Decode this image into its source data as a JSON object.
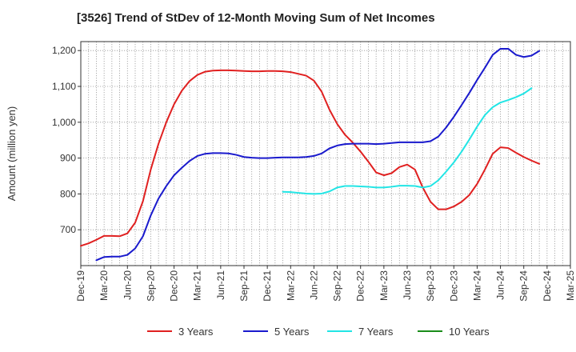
{
  "chart_data": {
    "type": "line",
    "title": "[3526]  Trend of StDev of 12-Month Moving Sum of Net Incomes",
    "ylabel": "Amount (million yen)",
    "xlabel": "",
    "x_ticks": [
      "Dec-19",
      "Mar-20",
      "Jun-20",
      "Sep-20",
      "Dec-20",
      "Mar-21",
      "Jun-21",
      "Sep-21",
      "Dec-21",
      "Mar-22",
      "Jun-22",
      "Sep-22",
      "Dec-22",
      "Mar-23",
      "Jun-23",
      "Sep-23",
      "Dec-23",
      "Mar-24",
      "Jun-24",
      "Sep-24",
      "Dec-24",
      "Mar-25"
    ],
    "y_ticks": [
      700,
      800,
      900,
      "1,000",
      "1,100",
      "1,200"
    ],
    "ylim": [
      600,
      1225
    ],
    "grid": true,
    "legend_position": "bottom",
    "x_unit": "months since Dec-19",
    "series": [
      {
        "name": "3 Years",
        "color": "#e02020",
        "points": [
          [
            0,
            655
          ],
          [
            1,
            662
          ],
          [
            2,
            672
          ],
          [
            3,
            683
          ],
          [
            4,
            683
          ],
          [
            5,
            682
          ],
          [
            6,
            690
          ],
          [
            7,
            720
          ],
          [
            8,
            780
          ],
          [
            9,
            868
          ],
          [
            10,
            940
          ],
          [
            11,
            1000
          ],
          [
            12,
            1050
          ],
          [
            13,
            1088
          ],
          [
            14,
            1115
          ],
          [
            15,
            1132
          ],
          [
            16,
            1141
          ],
          [
            17,
            1144
          ],
          [
            18,
            1145
          ],
          [
            19,
            1145
          ],
          [
            20,
            1144
          ],
          [
            21,
            1143
          ],
          [
            22,
            1142
          ],
          [
            23,
            1142
          ],
          [
            24,
            1143
          ],
          [
            25,
            1143
          ],
          [
            26,
            1142
          ],
          [
            27,
            1140
          ],
          [
            28,
            1135
          ],
          [
            29,
            1130
          ],
          [
            30,
            1116
          ],
          [
            31,
            1085
          ],
          [
            32,
            1035
          ],
          [
            33,
            995
          ],
          [
            34,
            965
          ],
          [
            35,
            943
          ],
          [
            36,
            918
          ],
          [
            37,
            890
          ],
          [
            38,
            860
          ],
          [
            39,
            852
          ],
          [
            40,
            858
          ],
          [
            41,
            875
          ],
          [
            42,
            882
          ],
          [
            43,
            868
          ],
          [
            44,
            818
          ],
          [
            45,
            778
          ],
          [
            46,
            757
          ],
          [
            47,
            757
          ],
          [
            48,
            765
          ],
          [
            49,
            778
          ],
          [
            50,
            797
          ],
          [
            51,
            828
          ],
          [
            52,
            868
          ],
          [
            53,
            912
          ],
          [
            54,
            930
          ],
          [
            55,
            928
          ],
          [
            56,
            915
          ],
          [
            57,
            903
          ],
          [
            58,
            893
          ],
          [
            59,
            884
          ]
        ]
      },
      {
        "name": "5 Years",
        "color": "#1a1acd",
        "points": [
          [
            2,
            615
          ],
          [
            3,
            624
          ],
          [
            4,
            625
          ],
          [
            5,
            625
          ],
          [
            6,
            630
          ],
          [
            7,
            648
          ],
          [
            8,
            682
          ],
          [
            9,
            740
          ],
          [
            10,
            787
          ],
          [
            11,
            822
          ],
          [
            12,
            852
          ],
          [
            13,
            873
          ],
          [
            14,
            892
          ],
          [
            15,
            906
          ],
          [
            16,
            912
          ],
          [
            17,
            914
          ],
          [
            18,
            914
          ],
          [
            19,
            913
          ],
          [
            20,
            909
          ],
          [
            21,
            903
          ],
          [
            22,
            901
          ],
          [
            23,
            900
          ],
          [
            24,
            900
          ],
          [
            25,
            901
          ],
          [
            26,
            902
          ],
          [
            27,
            902
          ],
          [
            28,
            902
          ],
          [
            29,
            903
          ],
          [
            30,
            906
          ],
          [
            31,
            913
          ],
          [
            32,
            927
          ],
          [
            33,
            935
          ],
          [
            34,
            939
          ],
          [
            35,
            940
          ],
          [
            36,
            940
          ],
          [
            37,
            940
          ],
          [
            38,
            939
          ],
          [
            39,
            940
          ],
          [
            40,
            942
          ],
          [
            41,
            944
          ],
          [
            42,
            944
          ],
          [
            43,
            944
          ],
          [
            44,
            944
          ],
          [
            45,
            947
          ],
          [
            46,
            960
          ],
          [
            47,
            985
          ],
          [
            48,
            1015
          ],
          [
            49,
            1048
          ],
          [
            50,
            1082
          ],
          [
            51,
            1118
          ],
          [
            52,
            1152
          ],
          [
            53,
            1188
          ],
          [
            54,
            1205
          ],
          [
            55,
            1205
          ],
          [
            56,
            1188
          ],
          [
            57,
            1182
          ],
          [
            58,
            1186
          ],
          [
            59,
            1199
          ]
        ]
      },
      {
        "name": "7 Years",
        "color": "#22e5e5",
        "points": [
          [
            26,
            806
          ],
          [
            27,
            805
          ],
          [
            28,
            803
          ],
          [
            29,
            801
          ],
          [
            30,
            800
          ],
          [
            31,
            801
          ],
          [
            32,
            807
          ],
          [
            33,
            818
          ],
          [
            34,
            822
          ],
          [
            35,
            822
          ],
          [
            36,
            821
          ],
          [
            37,
            820
          ],
          [
            38,
            818
          ],
          [
            39,
            818
          ],
          [
            40,
            820
          ],
          [
            41,
            823
          ],
          [
            42,
            823
          ],
          [
            43,
            822
          ],
          [
            44,
            818
          ],
          [
            45,
            822
          ],
          [
            46,
            838
          ],
          [
            47,
            862
          ],
          [
            48,
            888
          ],
          [
            49,
            918
          ],
          [
            50,
            952
          ],
          [
            51,
            988
          ],
          [
            52,
            1020
          ],
          [
            53,
            1042
          ],
          [
            54,
            1055
          ],
          [
            55,
            1062
          ],
          [
            56,
            1070
          ],
          [
            57,
            1080
          ],
          [
            58,
            1095
          ]
        ]
      },
      {
        "name": "10 Years",
        "color": "#1a8c1a",
        "points": []
      }
    ]
  }
}
